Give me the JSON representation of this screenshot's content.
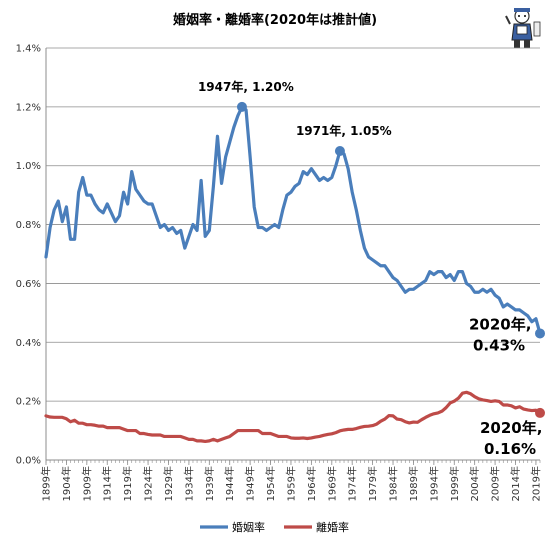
{
  "chart_data": {
    "type": "line",
    "title": "婚姻率・離婚率(2020年は推計値)",
    "ylim": [
      0,
      1.4
    ],
    "y_ticks": [
      "0.0%",
      "0.2%",
      "0.4%",
      "0.6%",
      "0.8%",
      "1.0%",
      "1.2%",
      "1.4%"
    ],
    "y_tick_values": [
      0,
      0.2,
      0.4,
      0.6,
      0.8,
      1.0,
      1.2,
      1.4
    ],
    "x_ticks": [
      "1899年",
      "1904年",
      "1909年",
      "1914年",
      "1919年",
      "1924年",
      "1929年",
      "1934年",
      "1939年",
      "1944年",
      "1949年",
      "1954年",
      "1959年",
      "1964年",
      "1969年",
      "1974年",
      "1979年",
      "1984年",
      "1989年",
      "1994年",
      "1999年",
      "2004年",
      "2009年",
      "2014年",
      "2019年"
    ],
    "x_tick_values": [
      1899,
      1904,
      1909,
      1914,
      1919,
      1924,
      1929,
      1934,
      1939,
      1944,
      1949,
      1954,
      1959,
      1964,
      1969,
      1974,
      1979,
      1984,
      1989,
      1994,
      1999,
      2004,
      2009,
      2014,
      2019
    ],
    "xlim": [
      1899,
      2020
    ],
    "grid": true,
    "legend_position": "bottom",
    "series": [
      {
        "name": "婚姻率",
        "color": "#4a7ebb",
        "points": [
          [
            1899,
            0.69
          ],
          [
            1900,
            0.79
          ],
          [
            1901,
            0.85
          ],
          [
            1902,
            0.88
          ],
          [
            1903,
            0.81
          ],
          [
            1904,
            0.86
          ],
          [
            1905,
            0.75
          ],
          [
            1906,
            0.75
          ],
          [
            1907,
            0.91
          ],
          [
            1908,
            0.96
          ],
          [
            1909,
            0.9
          ],
          [
            1910,
            0.9
          ],
          [
            1911,
            0.87
          ],
          [
            1912,
            0.85
          ],
          [
            1913,
            0.84
          ],
          [
            1914,
            0.87
          ],
          [
            1915,
            0.84
          ],
          [
            1916,
            0.81
          ],
          [
            1917,
            0.83
          ],
          [
            1918,
            0.91
          ],
          [
            1919,
            0.87
          ],
          [
            1920,
            0.98
          ],
          [
            1921,
            0.92
          ],
          [
            1922,
            0.9
          ],
          [
            1923,
            0.88
          ],
          [
            1924,
            0.87
          ],
          [
            1925,
            0.87
          ],
          [
            1926,
            0.83
          ],
          [
            1927,
            0.79
          ],
          [
            1928,
            0.8
          ],
          [
            1929,
            0.78
          ],
          [
            1930,
            0.79
          ],
          [
            1931,
            0.77
          ],
          [
            1932,
            0.78
          ],
          [
            1933,
            0.72
          ],
          [
            1934,
            0.76
          ],
          [
            1935,
            0.8
          ],
          [
            1936,
            0.78
          ],
          [
            1937,
            0.95
          ],
          [
            1938,
            0.76
          ],
          [
            1939,
            0.78
          ],
          [
            1940,
            0.93
          ],
          [
            1941,
            1.1
          ],
          [
            1942,
            0.94
          ],
          [
            1943,
            1.03
          ],
          [
            1944,
            1.08
          ],
          [
            1945,
            1.13
          ],
          [
            1946,
            1.17
          ],
          [
            1947,
            1.2
          ],
          [
            1948,
            1.19
          ],
          [
            1949,
            1.03
          ],
          [
            1950,
            0.86
          ],
          [
            1951,
            0.79
          ],
          [
            1952,
            0.79
          ],
          [
            1953,
            0.78
          ],
          [
            1954,
            0.79
          ],
          [
            1955,
            0.8
          ],
          [
            1956,
            0.79
          ],
          [
            1957,
            0.85
          ],
          [
            1958,
            0.9
          ],
          [
            1959,
            0.91
          ],
          [
            1960,
            0.93
          ],
          [
            1961,
            0.94
          ],
          [
            1962,
            0.98
          ],
          [
            1963,
            0.97
          ],
          [
            1964,
            0.99
          ],
          [
            1965,
            0.97
          ],
          [
            1966,
            0.95
          ],
          [
            1967,
            0.96
          ],
          [
            1968,
            0.95
          ],
          [
            1969,
            0.96
          ],
          [
            1970,
            1.0
          ],
          [
            1971,
            1.05
          ],
          [
            1972,
            1.04
          ],
          [
            1973,
            0.99
          ],
          [
            1974,
            0.91
          ],
          [
            1975,
            0.85
          ],
          [
            1976,
            0.78
          ],
          [
            1977,
            0.72
          ],
          [
            1978,
            0.69
          ],
          [
            1979,
            0.68
          ],
          [
            1980,
            0.67
          ],
          [
            1981,
            0.66
          ],
          [
            1982,
            0.66
          ],
          [
            1983,
            0.64
          ],
          [
            1984,
            0.62
          ],
          [
            1985,
            0.61
          ],
          [
            1986,
            0.59
          ],
          [
            1987,
            0.57
          ],
          [
            1988,
            0.58
          ],
          [
            1989,
            0.58
          ],
          [
            1990,
            0.59
          ],
          [
            1991,
            0.6
          ],
          [
            1992,
            0.61
          ],
          [
            1993,
            0.64
          ],
          [
            1994,
            0.63
          ],
          [
            1995,
            0.64
          ],
          [
            1996,
            0.64
          ],
          [
            1997,
            0.62
          ],
          [
            1998,
            0.63
          ],
          [
            1999,
            0.61
          ],
          [
            2000,
            0.64
          ],
          [
            2001,
            0.64
          ],
          [
            2002,
            0.6
          ],
          [
            2003,
            0.59
          ],
          [
            2004,
            0.57
          ],
          [
            2005,
            0.57
          ],
          [
            2006,
            0.58
          ],
          [
            2007,
            0.57
          ],
          [
            2008,
            0.58
          ],
          [
            2009,
            0.56
          ],
          [
            2010,
            0.55
          ],
          [
            2011,
            0.52
          ],
          [
            2012,
            0.53
          ],
          [
            2013,
            0.52
          ],
          [
            2014,
            0.51
          ],
          [
            2015,
            0.51
          ],
          [
            2016,
            0.5
          ],
          [
            2017,
            0.49
          ],
          [
            2018,
            0.47
          ],
          [
            2019,
            0.48
          ],
          [
            2020,
            0.43
          ]
        ]
      },
      {
        "name": "離婚率",
        "color": "#be4b48",
        "points": [
          [
            1899,
            0.15
          ],
          [
            1900,
            0.146
          ],
          [
            1901,
            0.145
          ],
          [
            1902,
            0.145
          ],
          [
            1903,
            0.145
          ],
          [
            1904,
            0.14
          ],
          [
            1905,
            0.13
          ],
          [
            1906,
            0.135
          ],
          [
            1907,
            0.125
          ],
          [
            1908,
            0.125
          ],
          [
            1909,
            0.12
          ],
          [
            1910,
            0.12
          ],
          [
            1911,
            0.118
          ],
          [
            1912,
            0.115
          ],
          [
            1913,
            0.115
          ],
          [
            1914,
            0.11
          ],
          [
            1915,
            0.11
          ],
          [
            1916,
            0.11
          ],
          [
            1917,
            0.11
          ],
          [
            1918,
            0.105
          ],
          [
            1919,
            0.1
          ],
          [
            1920,
            0.1
          ],
          [
            1921,
            0.1
          ],
          [
            1922,
            0.09
          ],
          [
            1923,
            0.09
          ],
          [
            1924,
            0.087
          ],
          [
            1925,
            0.085
          ],
          [
            1926,
            0.085
          ],
          [
            1927,
            0.085
          ],
          [
            1928,
            0.08
          ],
          [
            1929,
            0.08
          ],
          [
            1930,
            0.08
          ],
          [
            1931,
            0.08
          ],
          [
            1932,
            0.08
          ],
          [
            1933,
            0.075
          ],
          [
            1934,
            0.07
          ],
          [
            1935,
            0.07
          ],
          [
            1936,
            0.065
          ],
          [
            1937,
            0.065
          ],
          [
            1938,
            0.063
          ],
          [
            1939,
            0.065
          ],
          [
            1940,
            0.07
          ],
          [
            1941,
            0.065
          ],
          [
            1942,
            0.07
          ],
          [
            1943,
            0.075
          ],
          [
            1944,
            0.08
          ],
          [
            1945,
            0.09
          ],
          [
            1946,
            0.1
          ],
          [
            1947,
            0.1
          ],
          [
            1948,
            0.1
          ],
          [
            1949,
            0.1
          ],
          [
            1950,
            0.1
          ],
          [
            1951,
            0.1
          ],
          [
            1952,
            0.09
          ],
          [
            1953,
            0.09
          ],
          [
            1954,
            0.09
          ],
          [
            1955,
            0.085
          ],
          [
            1956,
            0.08
          ],
          [
            1957,
            0.08
          ],
          [
            1958,
            0.08
          ],
          [
            1959,
            0.075
          ],
          [
            1960,
            0.074
          ],
          [
            1961,
            0.074
          ],
          [
            1962,
            0.075
          ],
          [
            1963,
            0.073
          ],
          [
            1964,
            0.075
          ],
          [
            1965,
            0.078
          ],
          [
            1966,
            0.08
          ],
          [
            1967,
            0.084
          ],
          [
            1968,
            0.087
          ],
          [
            1969,
            0.089
          ],
          [
            1970,
            0.093
          ],
          [
            1971,
            0.099
          ],
          [
            1972,
            0.102
          ],
          [
            1973,
            0.104
          ],
          [
            1974,
            0.104
          ],
          [
            1975,
            0.107
          ],
          [
            1976,
            0.111
          ],
          [
            1977,
            0.114
          ],
          [
            1978,
            0.115
          ],
          [
            1979,
            0.117
          ],
          [
            1980,
            0.122
          ],
          [
            1981,
            0.132
          ],
          [
            1982,
            0.139
          ],
          [
            1983,
            0.151
          ],
          [
            1984,
            0.15
          ],
          [
            1985,
            0.139
          ],
          [
            1986,
            0.137
          ],
          [
            1987,
            0.13
          ],
          [
            1988,
            0.126
          ],
          [
            1989,
            0.129
          ],
          [
            1990,
            0.128
          ],
          [
            1991,
            0.137
          ],
          [
            1992,
            0.145
          ],
          [
            1993,
            0.152
          ],
          [
            1994,
            0.157
          ],
          [
            1995,
            0.16
          ],
          [
            1996,
            0.166
          ],
          [
            1997,
            0.178
          ],
          [
            1998,
            0.194
          ],
          [
            1999,
            0.2
          ],
          [
            2000,
            0.21
          ],
          [
            2001,
            0.227
          ],
          [
            2002,
            0.23
          ],
          [
            2003,
            0.225
          ],
          [
            2004,
            0.215
          ],
          [
            2005,
            0.208
          ],
          [
            2006,
            0.204
          ],
          [
            2007,
            0.202
          ],
          [
            2008,
            0.199
          ],
          [
            2009,
            0.201
          ],
          [
            2010,
            0.199
          ],
          [
            2011,
            0.187
          ],
          [
            2012,
            0.187
          ],
          [
            2013,
            0.184
          ],
          [
            2014,
            0.177
          ],
          [
            2015,
            0.181
          ],
          [
            2016,
            0.173
          ],
          [
            2017,
            0.17
          ],
          [
            2018,
            0.168
          ],
          [
            2019,
            0.169
          ],
          [
            2020,
            0.16
          ]
        ]
      }
    ],
    "annotations": [
      {
        "text": "1947年, 1.20%",
        "x": 1947,
        "y": 1.2,
        "series": 0,
        "style": "small",
        "anchor": "above-left"
      },
      {
        "text": "1971年, 1.05%",
        "x": 1971,
        "y": 1.05,
        "series": 0,
        "style": "small",
        "anchor": "above-left"
      },
      {
        "text": "2020年,",
        "text2": "0.43%",
        "x": 2020,
        "y": 0.43,
        "series": 0,
        "style": "large",
        "anchor": "left"
      },
      {
        "text": "2020年,",
        "text2": "0.16%",
        "x": 2020,
        "y": 0.16,
        "series": 1,
        "style": "large",
        "anchor": "below-left"
      }
    ]
  },
  "legend": {
    "items": [
      {
        "label": "婚姻率",
        "color": "#4a7ebb"
      },
      {
        "label": "離婚率",
        "color": "#be4b48"
      }
    ]
  },
  "logo": {
    "icon": "mascot-icon"
  }
}
